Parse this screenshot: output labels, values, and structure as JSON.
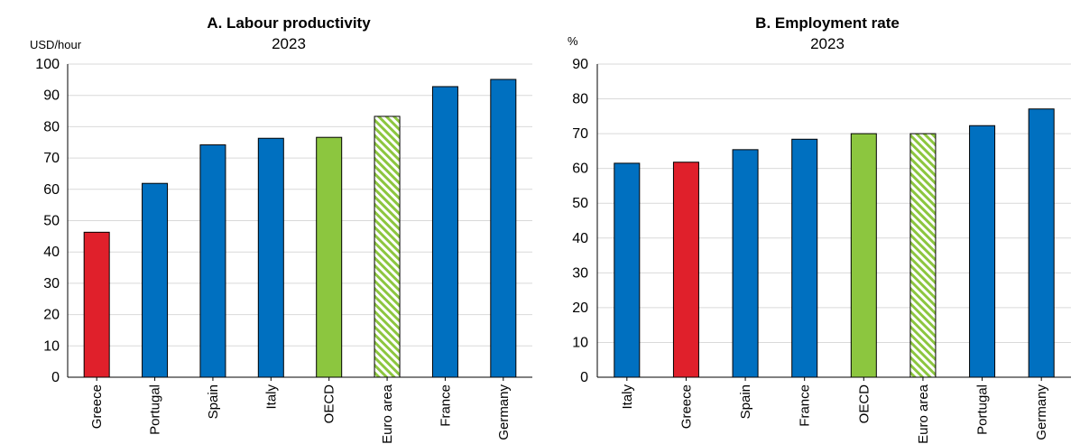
{
  "chart_data": [
    {
      "type": "bar",
      "title": "A. Labour productivity",
      "subtitle": "2023",
      "ylabel": "USD/hour",
      "ylim": [
        0,
        100
      ],
      "yticks": [
        0,
        10,
        20,
        30,
        40,
        50,
        60,
        70,
        80,
        90,
        100
      ],
      "grid": true,
      "categories": [
        "Greece",
        "Portugal",
        "Spain",
        "Italy",
        "OECD",
        "Euro area",
        "France",
        "Germany"
      ],
      "values": [
        46.3,
        61.9,
        74.2,
        76.3,
        76.6,
        83.3,
        92.8,
        95.1
      ],
      "bar_styles": [
        "highlight",
        "default",
        "default",
        "default",
        "benchmark",
        "hatched",
        "default",
        "default"
      ]
    },
    {
      "type": "bar",
      "title": "B. Employment rate",
      "subtitle": "2023",
      "ylabel": "%",
      "ylim": [
        0,
        90
      ],
      "yticks": [
        0,
        10,
        20,
        30,
        40,
        50,
        60,
        70,
        80,
        90
      ],
      "grid": true,
      "categories": [
        "Italy",
        "Greece",
        "Spain",
        "France",
        "OECD",
        "Euro area",
        "Portugal",
        "Germany"
      ],
      "values": [
        61.5,
        61.8,
        65.4,
        68.4,
        70.0,
        70.0,
        72.3,
        77.1
      ],
      "bar_styles": [
        "default",
        "highlight",
        "default",
        "default",
        "benchmark",
        "hatched",
        "default",
        "default"
      ]
    }
  ],
  "colors": {
    "default": "#0070c0",
    "highlight": "#e0202b",
    "benchmark": "#8cc63f",
    "hatched_fg": "#8cc63f",
    "hatched_bg": "#ffffff"
  }
}
